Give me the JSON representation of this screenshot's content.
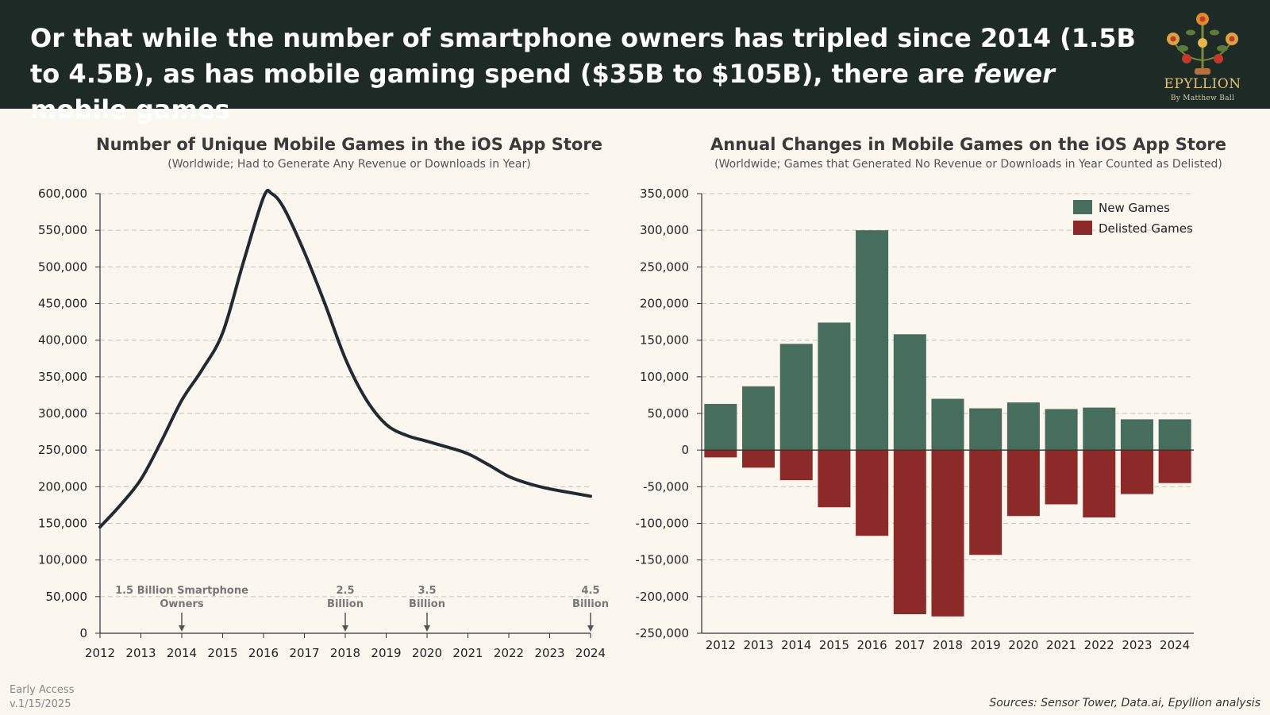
{
  "header": {
    "headline_part1": "Or that while the number of smartphone owners has tripled since 2014 (1.5B to 4.5B), as has mobile gaming spend ($35B to $105B), there are ",
    "headline_em": "fewer",
    "headline_part2": " mobile games"
  },
  "brand": {
    "name": "EPYLLION",
    "byline": "By Matthew Ball"
  },
  "colors": {
    "header_bg": "#1e2a25",
    "line": "#1f2a33",
    "new_games": "#476d5c",
    "delisted_games": "#8c2a29"
  },
  "chart_data": [
    {
      "type": "line",
      "title": "Number of Unique Mobile Games in the iOS App Store",
      "subtitle": "(Worldwide; Had to Generate Any Revenue or Downloads in Year)",
      "x": [
        2012,
        2012.5,
        2013,
        2013.5,
        2014,
        2014.5,
        2015,
        2015.5,
        2016,
        2016.2,
        2016.5,
        2017,
        2017.5,
        2018,
        2018.5,
        2019,
        2019.5,
        2020,
        2020.5,
        2021,
        2021.5,
        2022,
        2022.5,
        2023,
        2023.5,
        2024
      ],
      "y": [
        145000,
        175000,
        210000,
        262000,
        318000,
        360000,
        410000,
        505000,
        595000,
        600000,
        580000,
        520000,
        450000,
        375000,
        320000,
        285000,
        270000,
        262000,
        254000,
        245000,
        230000,
        214000,
        204000,
        197000,
        192000,
        187000
      ],
      "ylim": [
        0,
        600000
      ],
      "xlim": [
        2012,
        2024
      ],
      "yticks": [
        "0",
        "50,000",
        "100,000",
        "150,000",
        "200,000",
        "250,000",
        "300,000",
        "350,000",
        "400,000",
        "450,000",
        "500,000",
        "550,000",
        "600,000"
      ],
      "xticks": [
        "2012",
        "2013",
        "2014",
        "2015",
        "2016",
        "2017",
        "2018",
        "2019",
        "2020",
        "2021",
        "2022",
        "2023",
        "2024"
      ],
      "grid": true,
      "annotations": [
        {
          "x": 2014,
          "line1": "1.5 Billion Smartphone",
          "line2": "Owners"
        },
        {
          "x": 2018,
          "line1": "2.5",
          "line2": "Billion"
        },
        {
          "x": 2020,
          "line1": "3.5",
          "line2": "Billion"
        },
        {
          "x": 2024,
          "line1": "4.5",
          "line2": "Billion"
        }
      ]
    },
    {
      "type": "bar",
      "title": "Annual Changes in Mobile Games on the iOS App Store",
      "subtitle": "(Worldwide; Games that Generated No Revenue or Downloads in Year Counted as Delisted)",
      "categories": [
        "2012",
        "2013",
        "2014",
        "2015",
        "2016",
        "2017",
        "2018",
        "2019",
        "2020",
        "2021",
        "2022",
        "2023",
        "2024"
      ],
      "series": [
        {
          "name": "New Games",
          "values": [
            63000,
            87000,
            145000,
            174000,
            300000,
            158000,
            70000,
            57000,
            65000,
            56000,
            58000,
            42000,
            42000
          ]
        },
        {
          "name": "Delisted Games",
          "values": [
            -10000,
            -24000,
            -41000,
            -78000,
            -117000,
            -224000,
            -227000,
            -143000,
            -90000,
            -74000,
            -92000,
            -60000,
            -45000
          ]
        }
      ],
      "ylim": [
        -250000,
        350000
      ],
      "yticks": [
        "350,000",
        "300,000",
        "250,000",
        "200,000",
        "150,000",
        "100,000",
        "50,000",
        "0",
        "-50,000",
        "-100,000",
        "-150,000",
        "-200,000",
        "-250,000"
      ],
      "grid": true,
      "legend": "top-right"
    }
  ],
  "footer": {
    "access": "Early Access",
    "version": "v.1/15/2025",
    "sources": "Sources: Sensor Tower, Data.ai, Epyllion analysis"
  }
}
